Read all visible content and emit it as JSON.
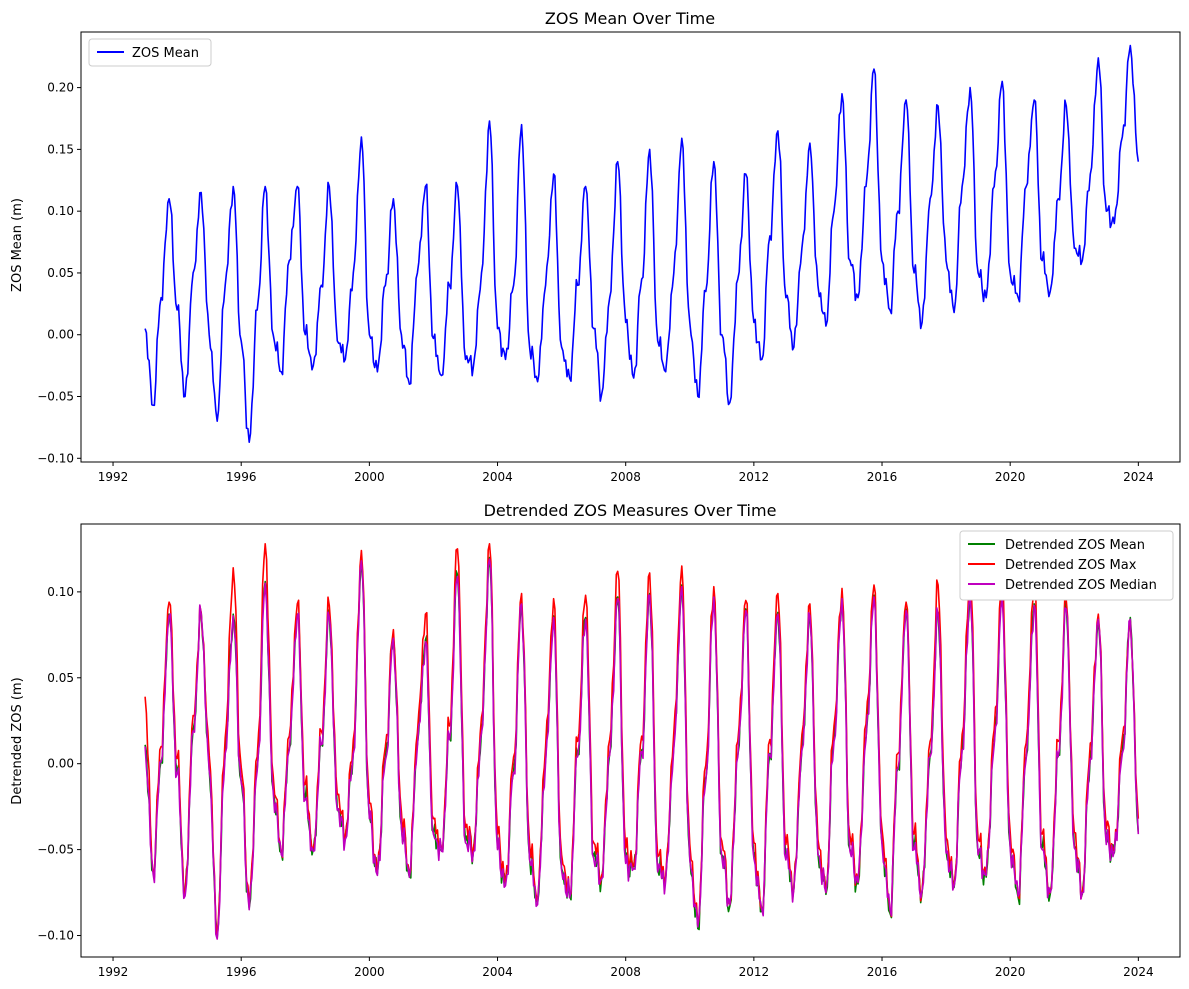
{
  "chart_data": [
    {
      "type": "line",
      "title": "ZOS Mean Over Time",
      "xlabel": "",
      "ylabel": "ZOS Mean (m)",
      "xlim": [
        1991.0,
        2025.3
      ],
      "ylim": [
        -0.103,
        0.245
      ],
      "x_ticks": [
        1992,
        1996,
        2000,
        2004,
        2008,
        2012,
        2016,
        2020,
        2024
      ],
      "y_ticks": [
        -0.1,
        -0.05,
        0.0,
        0.05,
        0.1,
        0.15,
        0.2
      ],
      "y_tick_labels": [
        "−0.10",
        "−0.05",
        "0.00",
        "0.05",
        "0.10",
        "0.15",
        "0.20"
      ],
      "legend_position": "top-left",
      "series": [
        {
          "name": "ZOS Mean",
          "color": "#0000ff",
          "x_start": 1993.0,
          "x_step": 0.25,
          "values": [
            0.005,
            -0.057,
            0.03,
            0.11,
            0.02,
            -0.05,
            0.05,
            0.115,
            0.0,
            -0.07,
            0.04,
            0.12,
            -0.005,
            -0.087,
            0.02,
            0.12,
            0.0,
            -0.03,
            0.06,
            0.12,
            0.0,
            -0.025,
            0.04,
            0.12,
            -0.005,
            -0.02,
            0.05,
            0.16,
            0.0,
            -0.03,
            0.04,
            0.11,
            0.0,
            -0.04,
            0.05,
            0.12,
            -0.003,
            -0.033,
            0.04,
            0.12,
            -0.02,
            -0.025,
            0.05,
            0.173,
            0.005,
            -0.02,
            0.04,
            0.17,
            -0.01,
            -0.038,
            0.04,
            0.13,
            -0.01,
            -0.035,
            0.04,
            0.12,
            0.005,
            -0.048,
            0.03,
            0.14,
            0.01,
            -0.035,
            0.045,
            0.15,
            -0.005,
            -0.03,
            0.05,
            0.159,
            0.01,
            -0.05,
            0.035,
            0.14,
            0.0,
            -0.055,
            0.045,
            0.13,
            0.01,
            -0.02,
            0.08,
            0.165,
            0.03,
            -0.01,
            0.07,
            0.155,
            0.04,
            0.007,
            0.1,
            0.195,
            0.06,
            0.03,
            0.12,
            0.215,
            0.06,
            0.02,
            0.1,
            0.19,
            0.05,
            0.01,
            0.11,
            0.185,
            0.06,
            0.018,
            0.12,
            0.2,
            0.05,
            0.03,
            0.12,
            0.205,
            0.05,
            0.03,
            0.12,
            0.19,
            0.06,
            0.035,
            0.11,
            0.185,
            0.07,
            0.06,
            0.13,
            0.224,
            0.1,
            0.09,
            0.16,
            0.234,
            0.14
          ]
        }
      ]
    },
    {
      "type": "line",
      "title": "Detrended ZOS Measures Over Time",
      "xlabel": "",
      "ylabel": "Detrended ZOS (m)",
      "xlim": [
        1991.0,
        2025.3
      ],
      "ylim": [
        -0.1125,
        0.1395
      ],
      "x_ticks": [
        1992,
        1996,
        2000,
        2004,
        2008,
        2012,
        2016,
        2020,
        2024
      ],
      "y_ticks": [
        -0.1,
        -0.05,
        0.0,
        0.05,
        0.1
      ],
      "y_tick_labels": [
        "−0.10",
        "−0.05",
        "0.00",
        "0.05",
        "0.10"
      ],
      "legend_position": "top-right",
      "series": [
        {
          "name": "Detrended ZOS Mean",
          "color": "#008000",
          "x_start": 1993.0,
          "x_step": 0.25,
          "values": [
            0.011,
            -0.063,
            0.002,
            0.087,
            -0.005,
            -0.076,
            0.02,
            0.088,
            -0.003,
            -0.101,
            0.007,
            0.087,
            -0.01,
            -0.084,
            -0.003,
            0.106,
            -0.015,
            -0.052,
            0.009,
            0.087,
            -0.02,
            -0.05,
            0.012,
            0.086,
            -0.026,
            -0.043,
            0.007,
            0.119,
            -0.031,
            -0.064,
            0.003,
            0.074,
            -0.036,
            -0.066,
            0.011,
            0.072,
            -0.04,
            -0.05,
            0.015,
            0.11,
            -0.045,
            -0.05,
            0.019,
            0.12,
            -0.049,
            -0.07,
            -0.004,
            0.094,
            -0.055,
            -0.081,
            0.002,
            0.086,
            -0.061,
            -0.077,
            0.005,
            0.085,
            -0.054,
            -0.066,
            0.006,
            0.097,
            -0.057,
            -0.06,
            0.008,
            0.099,
            -0.062,
            -0.067,
            0.01,
            0.104,
            -0.055,
            -0.096,
            -0.009,
            0.098,
            -0.053,
            -0.083,
            0.005,
            0.09,
            -0.054,
            -0.086,
            0.006,
            0.088,
            -0.055,
            -0.073,
            0.009,
            0.087,
            -0.052,
            -0.076,
            0.014,
            0.097,
            -0.05,
            -0.07,
            0.015,
            0.098,
            -0.046,
            -0.087,
            -0.002,
            0.09,
            -0.049,
            -0.075,
            0.005,
            0.088,
            -0.051,
            -0.072,
            0.009,
            0.1,
            -0.052,
            -0.066,
            0.012,
            0.098,
            -0.048,
            -0.078,
            0.004,
            0.093,
            -0.049,
            -0.076,
            0.005,
            0.091,
            -0.048,
            -0.076,
            0.004,
            0.085,
            -0.046,
            -0.052,
            0.007,
            0.085,
            -0.04
          ]
        },
        {
          "name": "Detrended ZOS Max",
          "color": "#ff0000",
          "x_start": 1993.0,
          "x_step": 0.25,
          "values": [
            0.039,
            -0.062,
            0.01,
            0.094,
            0.003,
            -0.075,
            0.028,
            0.088,
            0.005,
            -0.1,
            0.015,
            0.114,
            -0.002,
            -0.082,
            0.004,
            0.128,
            -0.007,
            -0.051,
            0.016,
            0.093,
            -0.012,
            -0.049,
            0.019,
            0.092,
            -0.018,
            -0.042,
            0.014,
            0.124,
            -0.023,
            -0.063,
            0.01,
            0.078,
            -0.028,
            -0.065,
            0.018,
            0.087,
            -0.032,
            -0.049,
            0.022,
            0.125,
            -0.037,
            -0.049,
            0.027,
            0.128,
            -0.041,
            -0.069,
            0.004,
            0.099,
            -0.047,
            -0.08,
            0.01,
            0.096,
            -0.053,
            -0.076,
            0.013,
            0.098,
            -0.046,
            -0.065,
            0.014,
            0.112,
            -0.049,
            -0.059,
            0.016,
            0.111,
            -0.054,
            -0.066,
            0.018,
            0.115,
            -0.047,
            -0.094,
            -0.001,
            0.103,
            -0.045,
            -0.082,
            0.013,
            0.095,
            -0.046,
            -0.085,
            0.014,
            0.099,
            -0.047,
            -0.072,
            0.017,
            0.093,
            -0.044,
            -0.075,
            0.022,
            0.102,
            -0.042,
            -0.069,
            0.023,
            0.104,
            -0.038,
            -0.085,
            0.006,
            0.094,
            -0.041,
            -0.074,
            0.013,
            0.104,
            -0.043,
            -0.071,
            0.017,
            0.112,
            -0.044,
            -0.065,
            0.02,
            0.108,
            -0.04,
            -0.077,
            0.012,
            0.107,
            -0.041,
            -0.075,
            0.013,
            0.095,
            -0.04,
            -0.075,
            0.012,
            0.087,
            -0.038,
            -0.051,
            0.015,
            0.083,
            -0.032
          ]
        },
        {
          "name": "Detrended ZOS Median",
          "color": "#bf00bf",
          "x_start": 1993.0,
          "x_step": 0.25,
          "values": [
            0.01,
            -0.064,
            0.001,
            0.086,
            -0.006,
            -0.077,
            0.019,
            0.087,
            -0.004,
            -0.102,
            0.006,
            0.086,
            -0.011,
            -0.085,
            -0.004,
            0.105,
            -0.016,
            -0.053,
            0.008,
            0.086,
            -0.021,
            -0.051,
            0.011,
            0.085,
            -0.027,
            -0.044,
            0.006,
            0.118,
            -0.032,
            -0.065,
            0.002,
            0.073,
            -0.037,
            -0.066,
            0.01,
            0.071,
            -0.041,
            -0.051,
            0.014,
            0.109,
            -0.046,
            -0.051,
            0.018,
            0.119,
            -0.05,
            -0.071,
            -0.005,
            0.093,
            -0.056,
            -0.082,
            0.001,
            0.085,
            -0.062,
            -0.078,
            0.004,
            0.084,
            -0.055,
            -0.067,
            0.005,
            0.096,
            -0.058,
            -0.061,
            0.007,
            0.098,
            -0.063,
            -0.068,
            0.009,
            0.103,
            -0.056,
            -0.095,
            -0.01,
            0.097,
            -0.054,
            -0.082,
            0.004,
            0.089,
            -0.055,
            -0.085,
            0.005,
            0.087,
            -0.056,
            -0.072,
            0.008,
            0.086,
            -0.053,
            -0.075,
            0.013,
            0.096,
            -0.051,
            -0.069,
            0.014,
            0.097,
            -0.047,
            -0.085,
            -0.003,
            0.089,
            -0.05,
            -0.074,
            0.004,
            0.087,
            -0.052,
            -0.071,
            0.008,
            0.099,
            -0.053,
            -0.065,
            0.011,
            0.097,
            -0.049,
            -0.077,
            0.003,
            0.092,
            -0.05,
            -0.075,
            0.004,
            0.09,
            -0.049,
            -0.075,
            0.003,
            0.084,
            -0.047,
            -0.051,
            0.006,
            0.084,
            -0.041
          ]
        }
      ]
    }
  ]
}
